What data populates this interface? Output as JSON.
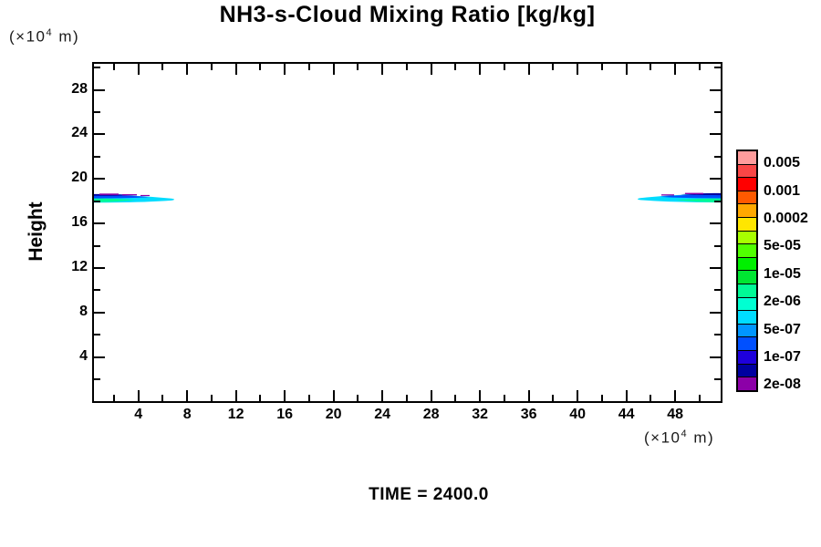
{
  "title": "NH3-s-Cloud Mixing Ratio [kg/kg]",
  "axes": {
    "y_title": "Height",
    "y_unit": {
      "prefix": "(×10",
      "exp": "4",
      "suffix": " m)"
    },
    "x_unit": {
      "prefix": "(×10",
      "exp": "4",
      "suffix": " m)"
    },
    "x_major_ticks": [
      4,
      8,
      12,
      16,
      20,
      24,
      28,
      32,
      36,
      40,
      44,
      48
    ],
    "x_minor_ticks": [
      2,
      6,
      10,
      14,
      18,
      22,
      26,
      30,
      34,
      38,
      42,
      46,
      50
    ],
    "y_major_ticks": [
      4,
      8,
      12,
      16,
      20,
      24,
      28
    ],
    "y_minor_ticks": [
      2,
      6,
      10,
      14,
      18,
      22,
      26,
      30
    ]
  },
  "colorbar": {
    "labels_top_to_bottom": [
      "0.005",
      "0.001",
      "0.0002",
      "5e-05",
      "1e-05",
      "2e-06",
      "5e-07",
      "1e-07",
      "2e-08"
    ],
    "swatch_colors_top_to_bottom": [
      "#FF9C9C",
      "#FA4646",
      "#FF0000",
      "#FF5A00",
      "#FFA800",
      "#FFE600",
      "#A8FF00",
      "#50FF00",
      "#00F000",
      "#00E632",
      "#00FA96",
      "#00FFD2",
      "#00DCFF",
      "#0096FF",
      "#0050FF",
      "#1E00DC",
      "#0000A0",
      "#8C00A8"
    ]
  },
  "footer": {
    "time_label": "TIME = 2400.0"
  },
  "chart_data": {
    "type": "heatmap",
    "title": "NH3-s-Cloud Mixing Ratio [kg/kg]",
    "xlabel": "(×10^4 m)",
    "ylabel": "Height (×10^4 m)",
    "xlim": [
      0.4,
      51.7
    ],
    "ylim": [
      0.2,
      30.4
    ],
    "x_ticks": [
      4,
      8,
      12,
      16,
      20,
      24,
      28,
      32,
      36,
      40,
      44,
      48
    ],
    "y_ticks": [
      4,
      8,
      12,
      16,
      20,
      24,
      28
    ],
    "grid": false,
    "legend_position": "right-colorbar",
    "colorbar_labels_top_to_bottom": [
      "0.005",
      "0.001",
      "0.0002",
      "5e-05",
      "1e-05",
      "2e-06",
      "5e-07",
      "1e-07",
      "2e-08"
    ],
    "annotation": "TIME = 2400.0",
    "features": [
      {
        "name": "left cloud band",
        "x_range_1e4m": [
          0.4,
          6.9
        ],
        "height_range_1e4m": [
          17.8,
          18.8
        ],
        "bands_top_to_bottom": [
          "2e-08 navy/purple rim",
          "1e-07 blue",
          "5e-07 cyan",
          "2e-06 green core near left edge"
        ],
        "band_colors": [
          "#8C00A8",
          "#0000A0",
          "#0050FF",
          "#00DCFF",
          "#00FA96"
        ]
      },
      {
        "name": "right cloud band",
        "x_range_1e4m": [
          44.6,
          51.7
        ],
        "height_range_1e4m": [
          17.8,
          18.8
        ],
        "bands_top_to_bottom": [
          "2e-08 navy/purple rim",
          "1e-07 blue",
          "5e-07 cyan",
          "2e-06 green core near right edge"
        ],
        "band_colors": [
          "#8C00A8",
          "#0000A0",
          "#0050FF",
          "#00DCFF",
          "#00FA96"
        ]
      }
    ]
  }
}
